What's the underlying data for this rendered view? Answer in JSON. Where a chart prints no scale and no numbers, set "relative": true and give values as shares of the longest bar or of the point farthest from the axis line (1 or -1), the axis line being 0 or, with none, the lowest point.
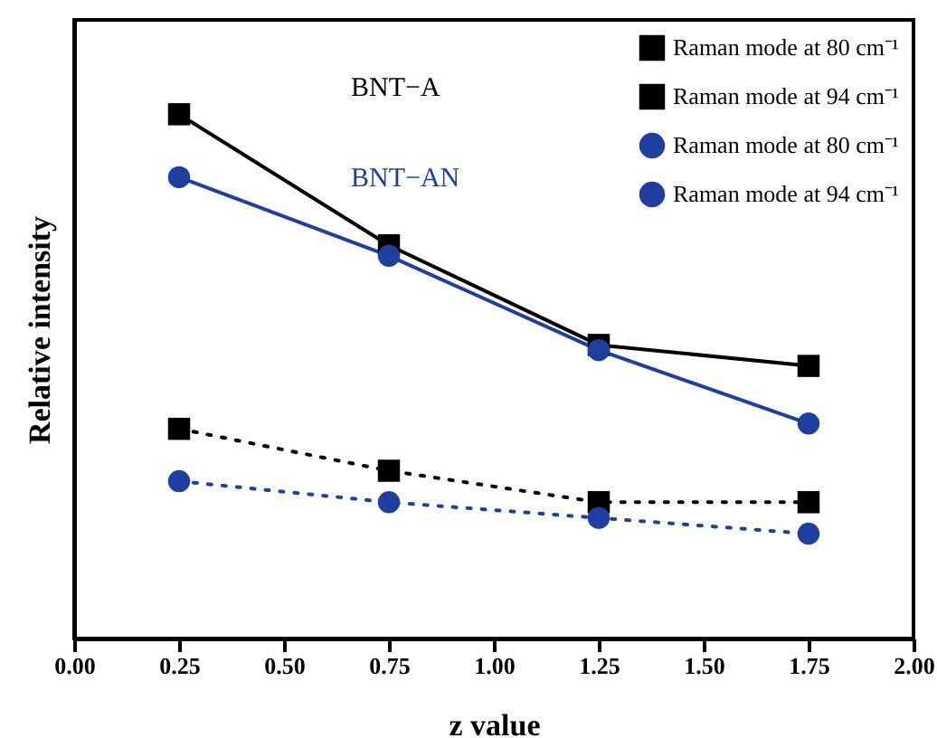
{
  "chart_data": {
    "type": "line",
    "relative": true,
    "xlabel": "z value",
    "ylabel": "Relative intensity",
    "x": [
      0.25,
      0.75,
      1.25,
      1.75
    ],
    "xlim": [
      0,
      2
    ],
    "xticks": [
      {
        "value": 0,
        "label": "0.00"
      },
      {
        "value": 0.25,
        "label": "0.25"
      },
      {
        "value": 0.5,
        "label": "0.50"
      },
      {
        "value": 0.75,
        "label": "0.75"
      },
      {
        "value": 1,
        "label": "1.00"
      },
      {
        "value": 1.25,
        "label": "1.25"
      },
      {
        "value": 1.5,
        "label": "1.50"
      },
      {
        "value": 1.75,
        "label": "1.75"
      },
      {
        "value": 2,
        "label": "2.00"
      }
    ],
    "legend": "top right",
    "grid": false,
    "annotations": [
      "BNT−A",
      "BNT−AN"
    ],
    "series": [
      {
        "name": "Raman mode at 80 cm⁻¹",
        "color": "#000000",
        "marker": "square",
        "line_style": "solid",
        "values": [
          1,
          0.75,
          0.56,
          0.52
        ]
      },
      {
        "name": "Raman mode at 94 cm⁻¹",
        "color": "#000000",
        "marker": "square",
        "line_style": "dotted",
        "values": [
          0.4,
          0.32,
          0.26,
          0.26
        ]
      },
      {
        "name": "Raman mode at 80 cm⁻¹",
        "color": "#1f3fa0",
        "marker": "circle",
        "line_style": "solid",
        "values": [
          0.88,
          0.73,
          0.55,
          0.41
        ]
      },
      {
        "name": "Raman mode at 94 cm⁻¹",
        "color": "#1f3fa0",
        "marker": "circle",
        "line_style": "dotted",
        "values": [
          0.3,
          0.26,
          0.23,
          0.2
        ]
      }
    ]
  }
}
